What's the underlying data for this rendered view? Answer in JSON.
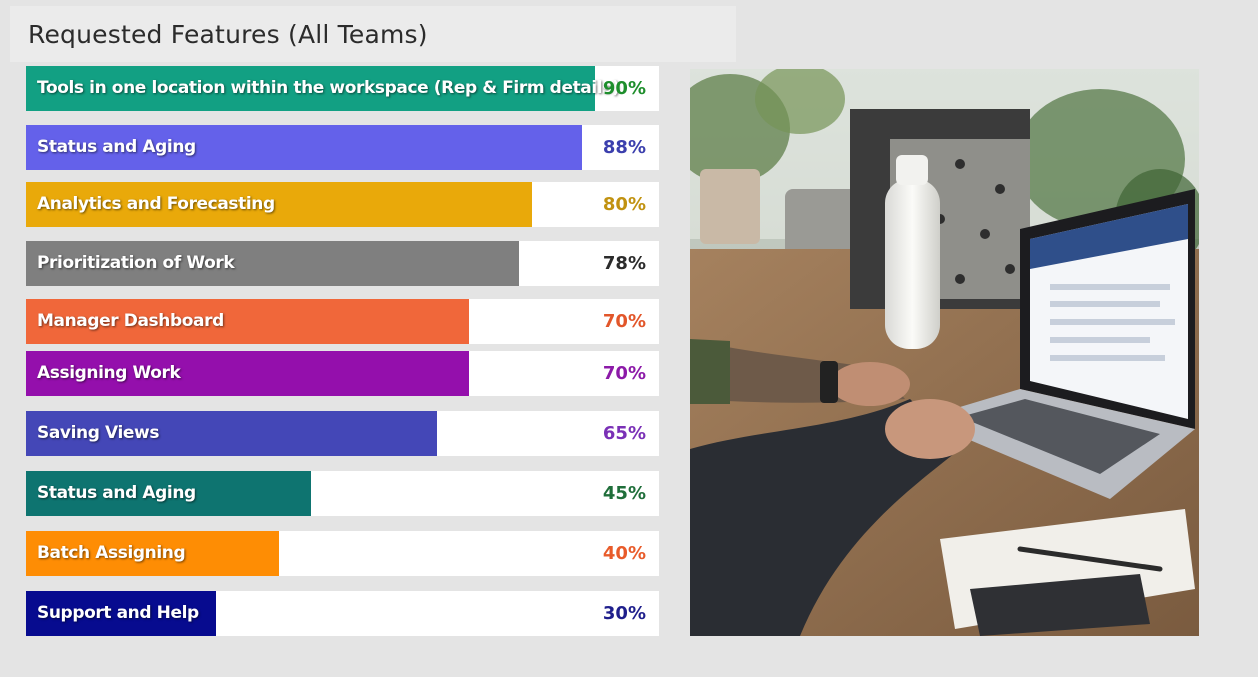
{
  "header": {
    "title": "Requested Features (All Teams)"
  },
  "colors": {
    "page_background": "#e4e4e4",
    "title_bar": "#ebebeb",
    "track": "#ffffff"
  },
  "chart_data": {
    "type": "bar",
    "orientation": "horizontal",
    "title": "Requested Features (All Teams)",
    "xlim": [
      0,
      100
    ],
    "grid": false,
    "legend": "none",
    "categories": [
      "Tools in one location within the workspace (Rep & Firm details)",
      "Status and Aging",
      "Analytics and Forecasting",
      "Prioritization of Work",
      "Manager Dashboard",
      "Assigning Work",
      "Saving Views",
      "Status and Aging",
      "Batch Assigning",
      "Support and Help"
    ],
    "values": [
      90,
      88,
      80,
      78,
      70,
      70,
      65,
      45,
      40,
      30
    ],
    "value_labels": [
      "90%",
      "88%",
      "80%",
      "78%",
      "70%",
      "70%",
      "65%",
      "45%",
      "40%",
      "30%"
    ],
    "bar_colors": [
      "#12a083",
      "#6461ea",
      "#e9a90a",
      "#7f7f7f",
      "#f0673a",
      "#940fac",
      "#4447b7",
      "#0e7470",
      "#fe8d04",
      "#070b8f"
    ],
    "value_label_colors": [
      "#1e8e2c",
      "#3b3fad",
      "#c19211",
      "#2b2b2b",
      "#e2562a",
      "#8c1aa8",
      "#7a30b6",
      "#1f6e3a",
      "#e85b2a",
      "#1f1f8c"
    ]
  },
  "photo": {
    "description_icon": "laptop-desk-photo"
  }
}
